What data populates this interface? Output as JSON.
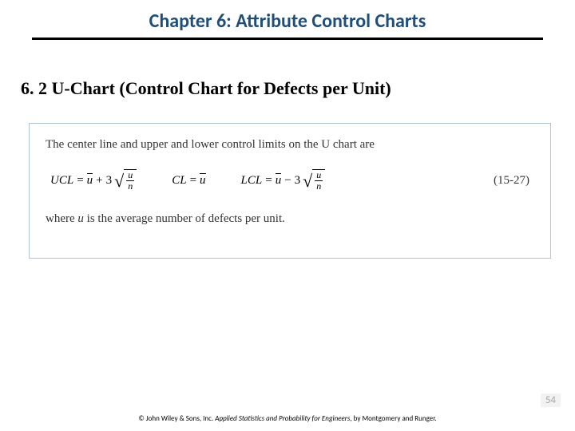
{
  "header": {
    "chapter_title": "Chapter 6: Attribute Control Charts",
    "title_color": "#1f4e79",
    "title_fontsize": 24,
    "underline_color": "#000000",
    "underline_width": 640
  },
  "section": {
    "number": "6. 2",
    "title": "U-Chart (Control Chart for Defects per Unit)",
    "heading_fontsize": 22,
    "heading_font": "Times New Roman"
  },
  "formula_box": {
    "border_color": "#b0c4d6",
    "background": "#ffffff",
    "intro_text": "The center line and upper and lower control limits on the U chart are",
    "formulas": {
      "ucl": {
        "label": "UCL",
        "op": "+",
        "coef": "3"
      },
      "cl": {
        "label": "CL"
      },
      "lcl": {
        "label": "LCL",
        "op": "−",
        "coef": "3"
      },
      "stat_symbol": "u",
      "divisor": "n"
    },
    "equation_number": "(15-27)",
    "where_prefix": "where ",
    "where_symbol": "u",
    "where_suffix": " is the average number of defects per unit.",
    "text_color": "#333333",
    "text_fontsize": 15
  },
  "page": {
    "number": "54",
    "number_color": "#a6a6a6",
    "number_bg": "#f2f2f2"
  },
  "footer": {
    "copyright": "© John Wiley & Sons, Inc.  ",
    "book_title": "Applied Statistics and Probability for Engineers",
    "authors": ", by Montgomery and Runger."
  }
}
